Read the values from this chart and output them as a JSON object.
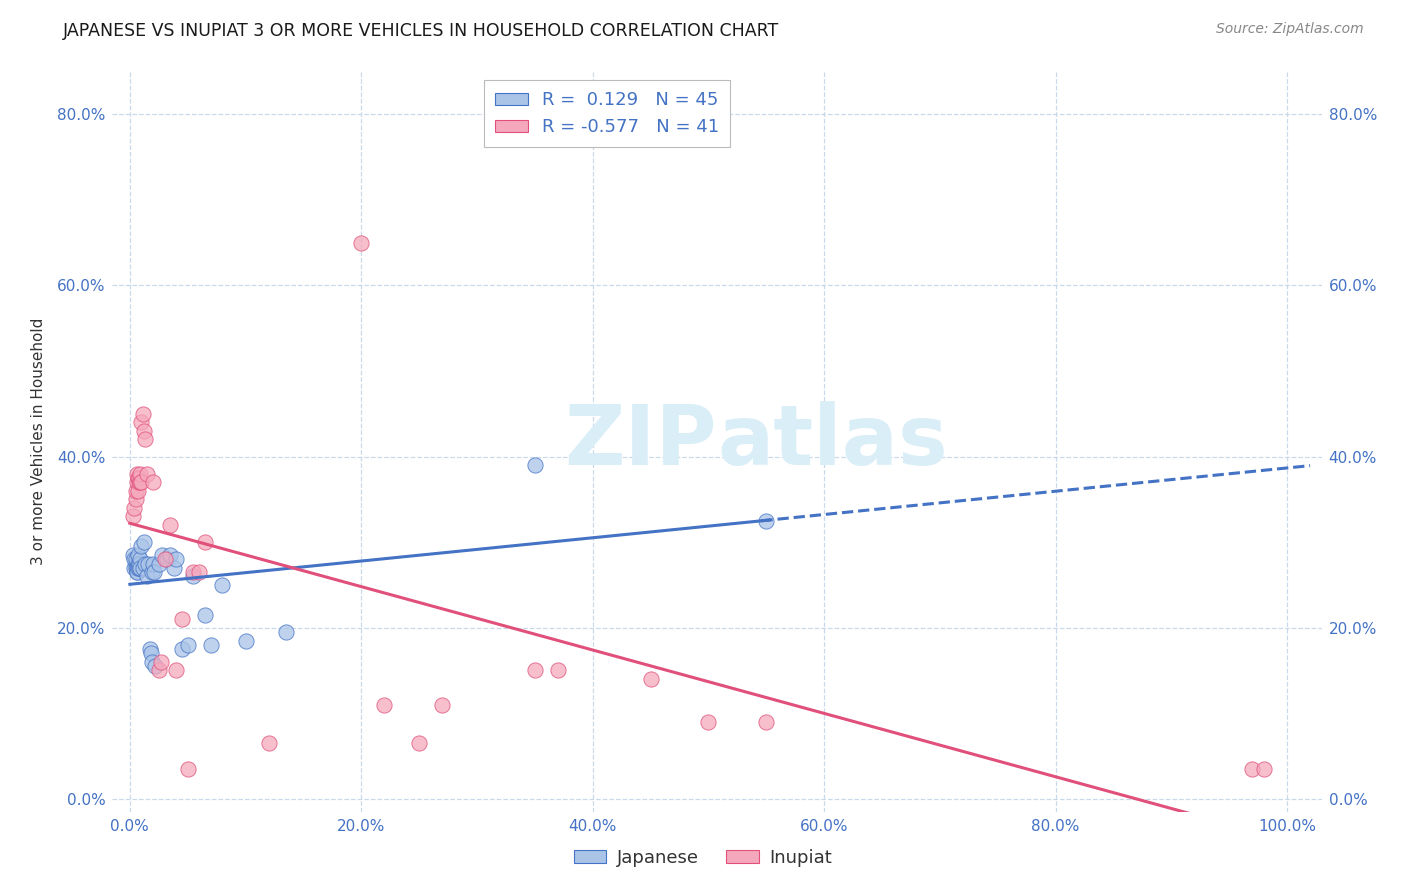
{
  "title": "JAPANESE VS INUPIAT 3 OR MORE VEHICLES IN HOUSEHOLD CORRELATION CHART",
  "source": "Source: ZipAtlas.com",
  "legend_label1": "Japanese",
  "legend_label2": "Inupiat",
  "r1": 0.129,
  "n1": 45,
  "r2": -0.577,
  "n2": 41,
  "color_japanese": "#aac4e8",
  "color_inupiat": "#f5a8bc",
  "color_line_japanese": "#4472c4",
  "color_line_inupiat": "#e0507a",
  "color_axis_labels": "#4472c4",
  "watermark_color": "#daeef8",
  "background_color": "#ffffff",
  "grid_color": "#c8daea",
  "ylabel": "3 or more Vehicles in Household",
  "japanese_scatter": [
    [
      0.003,
      0.285
    ],
    [
      0.004,
      0.27
    ],
    [
      0.004,
      0.28
    ],
    [
      0.005,
      0.275
    ],
    [
      0.005,
      0.27
    ],
    [
      0.005,
      0.28
    ],
    [
      0.006,
      0.265
    ],
    [
      0.006,
      0.27
    ],
    [
      0.006,
      0.265
    ],
    [
      0.007,
      0.275
    ],
    [
      0.007,
      0.27
    ],
    [
      0.007,
      0.285
    ],
    [
      0.008,
      0.27
    ],
    [
      0.008,
      0.275
    ],
    [
      0.009,
      0.28
    ],
    [
      0.009,
      0.27
    ],
    [
      0.01,
      0.295
    ],
    [
      0.011,
      0.27
    ],
    [
      0.012,
      0.3
    ],
    [
      0.013,
      0.275
    ],
    [
      0.015,
      0.26
    ],
    [
      0.016,
      0.275
    ],
    [
      0.017,
      0.175
    ],
    [
      0.018,
      0.17
    ],
    [
      0.019,
      0.265
    ],
    [
      0.019,
      0.16
    ],
    [
      0.02,
      0.275
    ],
    [
      0.021,
      0.265
    ],
    [
      0.022,
      0.155
    ],
    [
      0.025,
      0.275
    ],
    [
      0.028,
      0.285
    ],
    [
      0.032,
      0.28
    ],
    [
      0.035,
      0.285
    ],
    [
      0.038,
      0.27
    ],
    [
      0.04,
      0.28
    ],
    [
      0.045,
      0.175
    ],
    [
      0.05,
      0.18
    ],
    [
      0.055,
      0.26
    ],
    [
      0.065,
      0.215
    ],
    [
      0.07,
      0.18
    ],
    [
      0.08,
      0.25
    ],
    [
      0.1,
      0.185
    ],
    [
      0.135,
      0.195
    ],
    [
      0.35,
      0.39
    ],
    [
      0.55,
      0.325
    ]
  ],
  "inupiat_scatter": [
    [
      0.003,
      0.33
    ],
    [
      0.004,
      0.34
    ],
    [
      0.005,
      0.35
    ],
    [
      0.005,
      0.36
    ],
    [
      0.006,
      0.37
    ],
    [
      0.006,
      0.38
    ],
    [
      0.007,
      0.375
    ],
    [
      0.007,
      0.36
    ],
    [
      0.008,
      0.37
    ],
    [
      0.008,
      0.375
    ],
    [
      0.009,
      0.37
    ],
    [
      0.009,
      0.38
    ],
    [
      0.01,
      0.44
    ],
    [
      0.01,
      0.37
    ],
    [
      0.011,
      0.45
    ],
    [
      0.012,
      0.43
    ],
    [
      0.013,
      0.42
    ],
    [
      0.015,
      0.38
    ],
    [
      0.02,
      0.37
    ],
    [
      0.025,
      0.15
    ],
    [
      0.027,
      0.16
    ],
    [
      0.03,
      0.28
    ],
    [
      0.035,
      0.32
    ],
    [
      0.04,
      0.15
    ],
    [
      0.045,
      0.21
    ],
    [
      0.05,
      0.035
    ],
    [
      0.055,
      0.265
    ],
    [
      0.06,
      0.265
    ],
    [
      0.065,
      0.3
    ],
    [
      0.12,
      0.065
    ],
    [
      0.2,
      0.65
    ],
    [
      0.22,
      0.11
    ],
    [
      0.25,
      0.065
    ],
    [
      0.27,
      0.11
    ],
    [
      0.35,
      0.15
    ],
    [
      0.37,
      0.15
    ],
    [
      0.45,
      0.14
    ],
    [
      0.5,
      0.09
    ],
    [
      0.55,
      0.09
    ],
    [
      0.97,
      0.035
    ],
    [
      0.98,
      0.035
    ]
  ],
  "xlim": [
    0.0,
    1.0
  ],
  "ylim": [
    0.0,
    0.85
  ],
  "xticks": [
    0.0,
    0.2,
    0.4,
    0.6,
    0.8,
    1.0
  ],
  "yticks": [
    0.0,
    0.2,
    0.4,
    0.6,
    0.8
  ],
  "xticklabels": [
    "0.0%",
    "20.0%",
    "40.0%",
    "60.0%",
    "80.0%",
    "100.0%"
  ],
  "yticklabels": [
    "0.0%",
    "20.0%",
    "40.0%",
    "60.0%",
    "80.0%"
  ]
}
